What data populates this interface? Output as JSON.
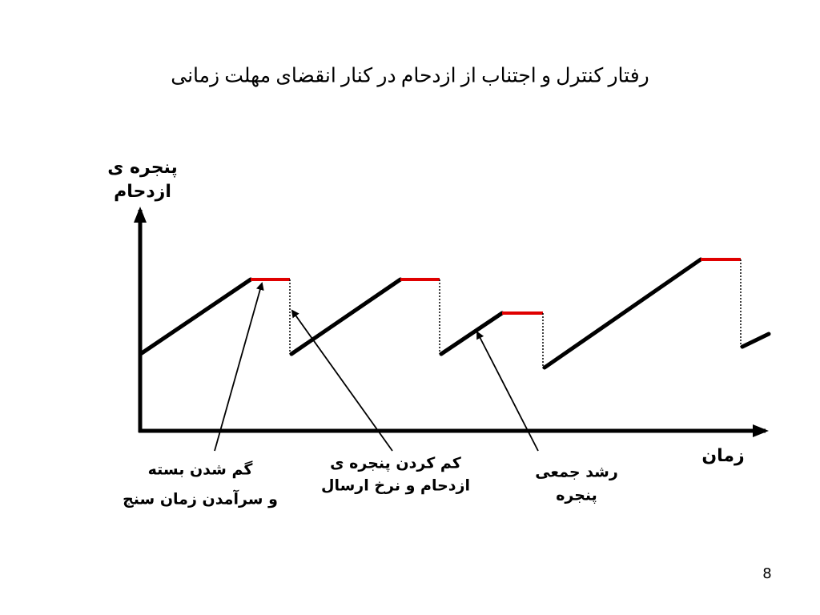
{
  "title": "رفتار کنترل و اجتناب از ازدحام در کنار انقضای مهلت زمانی",
  "y_axis_label": [
    "پنجره ی",
    "ازدحام"
  ],
  "x_axis_label": "زمان",
  "annotations": [
    {
      "lines": [
        "گم شدن بسته",
        "و سرآمدن زمان سنج"
      ]
    },
    {
      "lines": [
        "کم کردن پنجره ی",
        "ازدحام و نرخ ارسال"
      ]
    },
    {
      "lines": [
        "رشد جمعی",
        "پنجره"
      ]
    }
  ],
  "page_number": "8"
}
